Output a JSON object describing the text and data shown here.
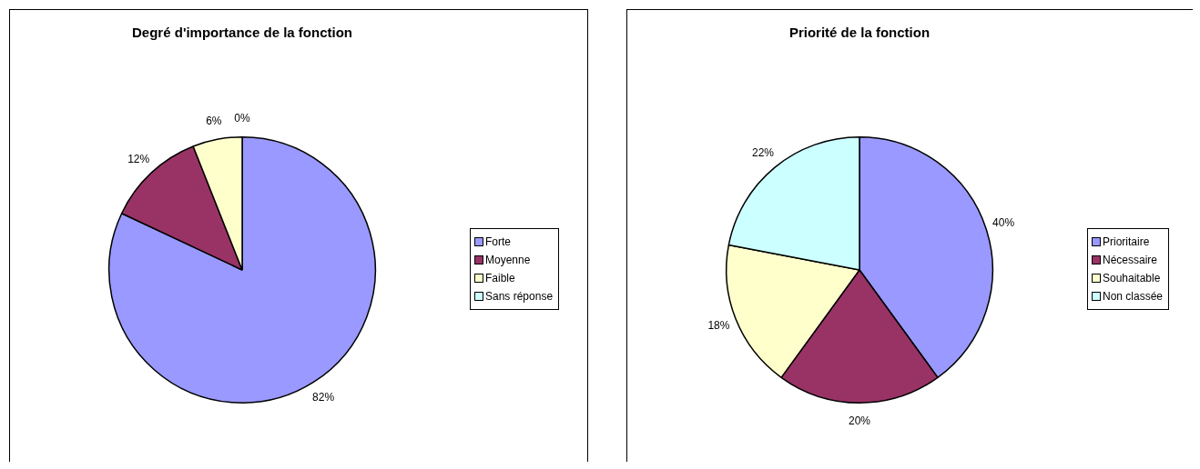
{
  "chart_data": [
    {
      "type": "pie",
      "title": "Degré d'importance de la fonction",
      "categories": [
        "Forte",
        "Moyenne",
        "Faible",
        "Sans réponse"
      ],
      "values": [
        82,
        12,
        6,
        0
      ],
      "value_labels": [
        "82%",
        "12%",
        "6%",
        "0%"
      ],
      "colors": [
        "#9999ff",
        "#993366",
        "#ffffcc",
        "#ccffff"
      ],
      "legend": "right"
    },
    {
      "type": "pie",
      "title": "Priorité de la fonction",
      "categories": [
        "Prioritaire",
        "Nécessaire",
        "Souhaitable",
        "Non classée"
      ],
      "values": [
        40,
        20,
        18,
        22
      ],
      "value_labels": [
        "40%",
        "20%",
        "18%",
        "22%"
      ],
      "colors": [
        "#9999ff",
        "#993366",
        "#ffffcc",
        "#ccffff"
      ],
      "legend": "right"
    }
  ]
}
